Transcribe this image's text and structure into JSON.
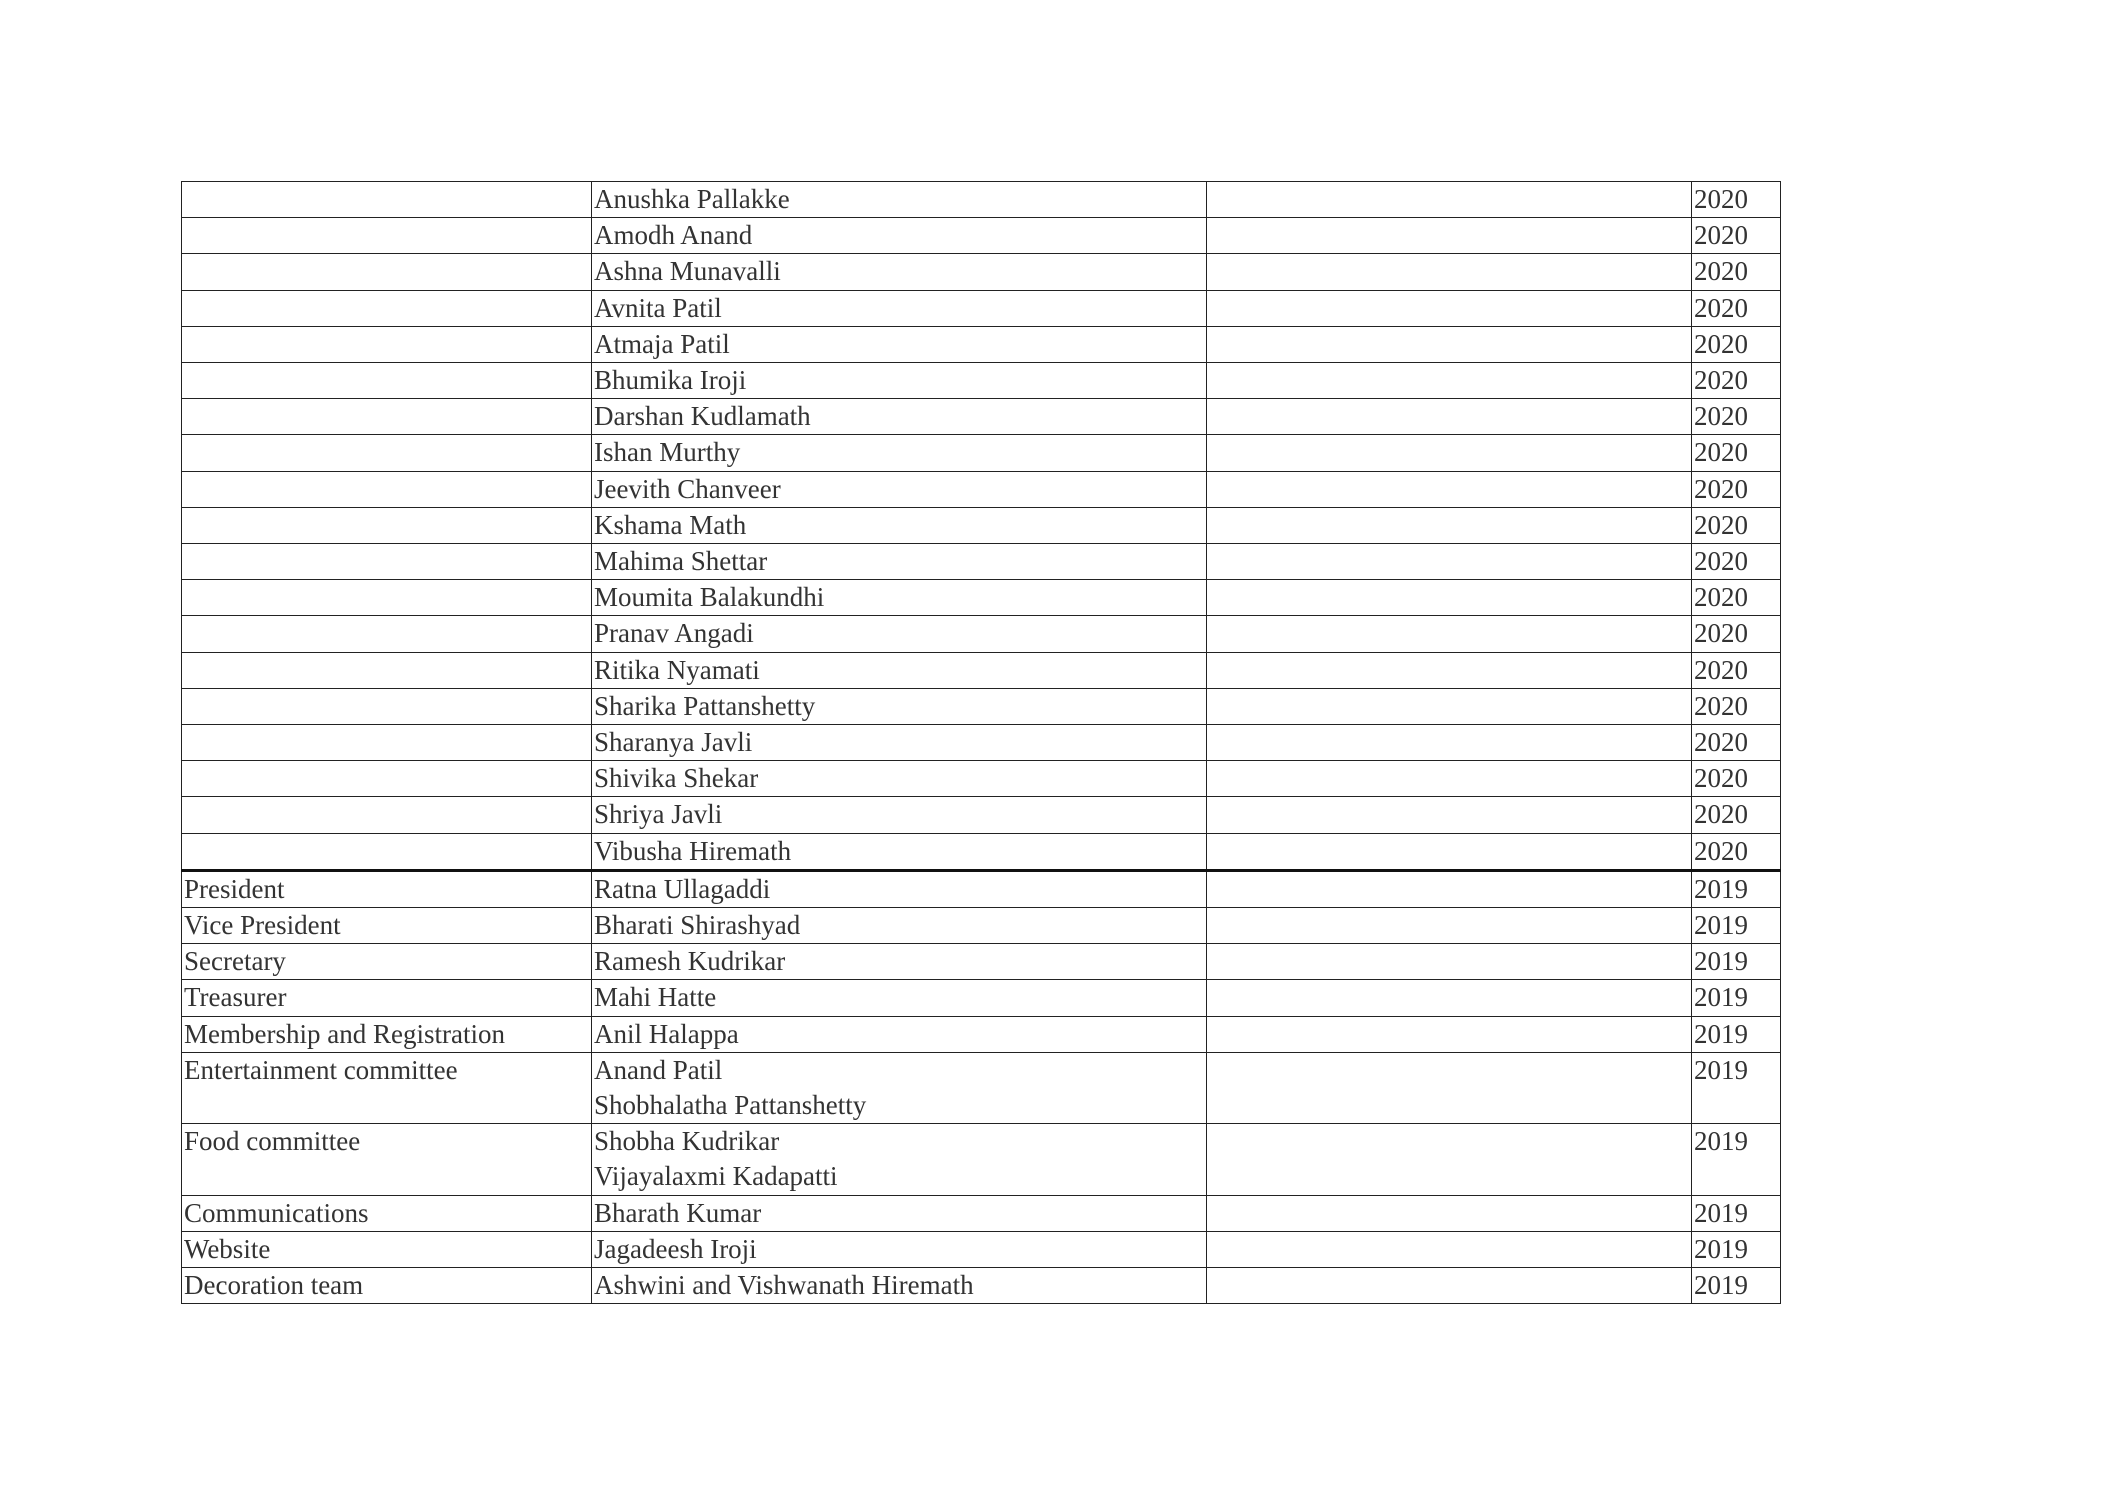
{
  "rows": [
    {
      "role": "",
      "names": [
        "Anushka Pallakke"
      ],
      "notes": "",
      "year": "2020"
    },
    {
      "role": "",
      "names": [
        "Amodh Anand"
      ],
      "notes": "",
      "year": "2020"
    },
    {
      "role": "",
      "names": [
        "Ashna Munavalli"
      ],
      "notes": "",
      "year": "2020"
    },
    {
      "role": "",
      "names": [
        "Avnita Patil"
      ],
      "notes": "",
      "year": "2020"
    },
    {
      "role": "",
      "names": [
        "Atmaja Patil"
      ],
      "notes": "",
      "year": "2020"
    },
    {
      "role": "",
      "names": [
        "Bhumika Iroji"
      ],
      "notes": "",
      "year": "2020"
    },
    {
      "role": "",
      "names": [
        "Darshan Kudlamath"
      ],
      "notes": "",
      "year": "2020"
    },
    {
      "role": "",
      "names": [
        "Ishan Murthy"
      ],
      "notes": "",
      "year": "2020"
    },
    {
      "role": "",
      "names": [
        "Jeevith Chanveer"
      ],
      "notes": "",
      "year": "2020"
    },
    {
      "role": "",
      "names": [
        "Kshama Math"
      ],
      "notes": "",
      "year": "2020"
    },
    {
      "role": "",
      "names": [
        "Mahima Shettar"
      ],
      "notes": "",
      "year": "2020"
    },
    {
      "role": "",
      "names": [
        "Moumita Balakundhi"
      ],
      "notes": "",
      "year": "2020"
    },
    {
      "role": "",
      "names": [
        "Pranav Angadi"
      ],
      "notes": "",
      "year": "2020"
    },
    {
      "role": "",
      "names": [
        "Ritika Nyamati"
      ],
      "notes": "",
      "year": "2020"
    },
    {
      "role": "",
      "names": [
        "Sharika Pattanshetty"
      ],
      "notes": "",
      "year": "2020"
    },
    {
      "role": "",
      "names": [
        "Sharanya Javli"
      ],
      "notes": "",
      "year": "2020"
    },
    {
      "role": "",
      "names": [
        "Shivika Shekar"
      ],
      "notes": "",
      "year": "2020"
    },
    {
      "role": "",
      "names": [
        "Shriya Javli"
      ],
      "notes": "",
      "year": "2020"
    },
    {
      "role": "",
      "names": [
        "Vibusha Hiremath"
      ],
      "notes": "",
      "year": "2020",
      "group_end": true
    },
    {
      "role": "President",
      "names": [
        "Ratna Ullagaddi"
      ],
      "notes": "",
      "year": "2019"
    },
    {
      "role": "Vice President",
      "names": [
        "Bharati Shirashyad"
      ],
      "notes": "",
      "year": "2019"
    },
    {
      "role": "Secretary",
      "names": [
        "Ramesh Kudrikar"
      ],
      "notes": "",
      "year": "2019"
    },
    {
      "role": "Treasurer",
      "names": [
        "Mahi Hatte"
      ],
      "notes": "",
      "year": "2019"
    },
    {
      "role": "Membership and Registration",
      "names": [
        "Anil Halappa"
      ],
      "notes": "",
      "year": "2019"
    },
    {
      "role": "Entertainment committee",
      "names": [
        "Anand Patil",
        "Shobhalatha Pattanshetty"
      ],
      "notes": "",
      "year": "2019"
    },
    {
      "role": "Food committee",
      "names": [
        "Shobha Kudrikar",
        "Vijayalaxmi Kadapatti"
      ],
      "notes": "",
      "year": "2019"
    },
    {
      "role": "Communications",
      "names": [
        "Bharath Kumar"
      ],
      "notes": "",
      "year": "2019"
    },
    {
      "role": "Website",
      "names": [
        "Jagadeesh Iroji"
      ],
      "notes": "",
      "year": "2019"
    },
    {
      "role": "Decoration team",
      "names": [
        "Ashwini and Vishwanath Hiremath"
      ],
      "notes": "",
      "year": "2019"
    }
  ]
}
